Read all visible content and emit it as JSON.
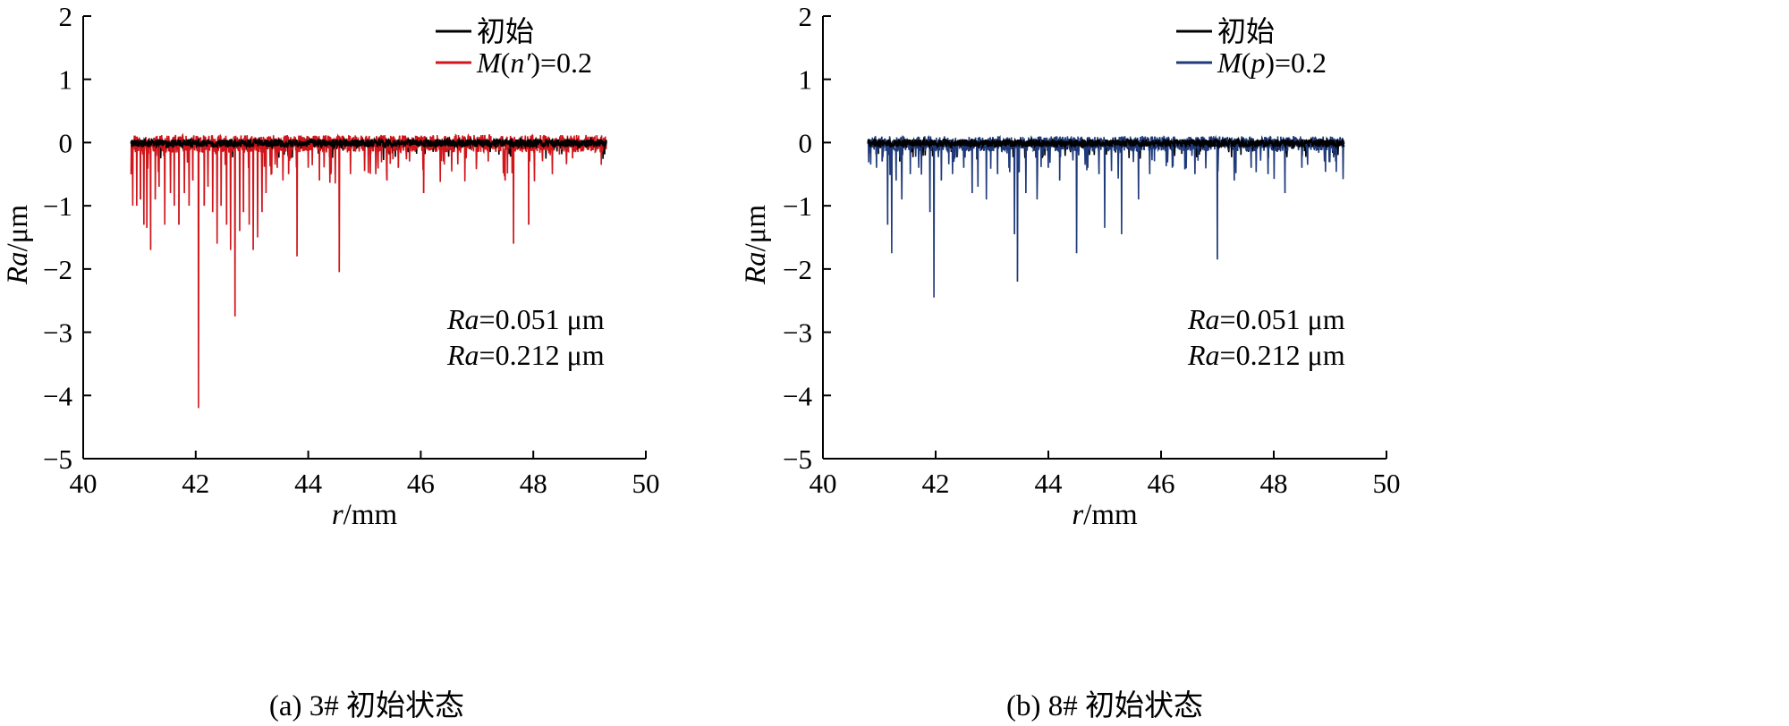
{
  "chart_data": [
    {
      "type": "line",
      "panel_caption": "(a)  3# 初始状态",
      "xlabel": {
        "var": "r",
        "unit": "mm"
      },
      "ylabel": {
        "var": "Ra",
        "unit": "μm"
      },
      "xlim": [
        40,
        50
      ],
      "ylim": [
        -5,
        2
      ],
      "xticks": [
        "40",
        "42",
        "44",
        "46",
        "48",
        "50"
      ],
      "yticks": [
        "2",
        "1",
        "0",
        "−1",
        "−2",
        "−3",
        "−4",
        "−5"
      ],
      "legend_position": "top-right",
      "series": [
        {
          "name": "初始",
          "color": "#000000",
          "x_range": [
            40.85,
            49.3
          ],
          "baseline": -0.01,
          "noise_amplitude": 0.06
        },
        {
          "name_parts": {
            "var": "M",
            "arg": "n′",
            "value": "=0.2"
          },
          "color": "#d0161b",
          "x_range": [
            40.85,
            49.3
          ],
          "baseline": -0.02,
          "noise_amplitude": 0.14,
          "spikes": [
            [
              40.88,
              -1.0
            ],
            [
              40.95,
              -1.0
            ],
            [
              41.02,
              -0.9
            ],
            [
              41.08,
              -1.3
            ],
            [
              41.13,
              -1.35
            ],
            [
              41.2,
              -1.7
            ],
            [
              41.28,
              -0.9
            ],
            [
              41.35,
              -0.7
            ],
            [
              41.45,
              -1.3
            ],
            [
              41.55,
              -0.8
            ],
            [
              41.62,
              -1.0
            ],
            [
              41.7,
              -1.3
            ],
            [
              41.8,
              -0.8
            ],
            [
              41.88,
              -1.0
            ],
            [
              41.95,
              -0.6
            ],
            [
              42.05,
              -4.2
            ],
            [
              42.15,
              -1.0
            ],
            [
              42.22,
              -0.7
            ],
            [
              42.3,
              -1.1
            ],
            [
              42.38,
              -1.6
            ],
            [
              42.45,
              -1.0
            ],
            [
              42.55,
              -1.3
            ],
            [
              42.62,
              -1.7
            ],
            [
              42.7,
              -2.75
            ],
            [
              42.78,
              -1.4
            ],
            [
              42.85,
              -1.1
            ],
            [
              42.95,
              -1.3
            ],
            [
              43.02,
              -1.7
            ],
            [
              43.1,
              -1.5
            ],
            [
              43.18,
              -1.1
            ],
            [
              43.25,
              -0.8
            ],
            [
              43.35,
              -0.5
            ],
            [
              43.45,
              -0.4
            ],
            [
              43.55,
              -0.6
            ],
            [
              43.65,
              -0.5
            ],
            [
              43.8,
              -1.8
            ],
            [
              44.0,
              -0.4
            ],
            [
              44.2,
              -0.6
            ],
            [
              44.4,
              -0.5
            ],
            [
              44.55,
              -2.05
            ],
            [
              44.75,
              -0.5
            ],
            [
              45.0,
              -0.45
            ],
            [
              45.2,
              -0.5
            ],
            [
              45.4,
              -0.6
            ],
            [
              45.6,
              -0.4
            ],
            [
              45.8,
              -0.3
            ],
            [
              46.05,
              -0.8
            ],
            [
              46.4,
              -0.3
            ],
            [
              46.8,
              -0.25
            ],
            [
              47.2,
              -0.3
            ],
            [
              47.5,
              -0.6
            ],
            [
              47.65,
              -1.6
            ],
            [
              47.92,
              -1.3
            ],
            [
              48.3,
              -0.2
            ],
            [
              48.7,
              -0.25
            ],
            [
              49.1,
              -0.15
            ]
          ]
        }
      ],
      "annotations": [
        {
          "var": "Ra",
          "text": "=0.051 μm"
        },
        {
          "var": "Ra",
          "text": "=0.212 μm"
        }
      ]
    },
    {
      "type": "line",
      "panel_caption": "(b)  8# 初始状态",
      "xlabel": {
        "var": "r",
        "unit": "mm"
      },
      "ylabel": {
        "var": "Ra",
        "unit": "μm"
      },
      "xlim": [
        40,
        50
      ],
      "ylim": [
        -5,
        2
      ],
      "xticks": [
        "40",
        "42",
        "44",
        "46",
        "48",
        "50"
      ],
      "yticks": [
        "2",
        "1",
        "0",
        "−1",
        "−2",
        "−3",
        "−4",
        "−5"
      ],
      "legend_position": "top-right",
      "series": [
        {
          "name": "初始",
          "color": "#000000",
          "x_range": [
            40.8,
            49.25
          ],
          "baseline": -0.01,
          "noise_amplitude": 0.06
        },
        {
          "name_parts": {
            "var": "M",
            "arg": "p",
            "value": "=0.2"
          },
          "color": "#1f3a7a",
          "x_range": [
            40.8,
            49.25
          ],
          "baseline": -0.02,
          "noise_amplitude": 0.12,
          "spikes": [
            [
              40.95,
              -0.4
            ],
            [
              41.05,
              -0.3
            ],
            [
              41.15,
              -1.3
            ],
            [
              41.22,
              -1.75
            ],
            [
              41.3,
              -0.6
            ],
            [
              41.4,
              -0.9
            ],
            [
              41.55,
              -0.5
            ],
            [
              41.7,
              -0.4
            ],
            [
              41.9,
              -1.1
            ],
            [
              41.97,
              -2.45
            ],
            [
              42.1,
              -0.6
            ],
            [
              42.3,
              -0.5
            ],
            [
              42.5,
              -0.4
            ],
            [
              42.65,
              -0.8
            ],
            [
              42.75,
              -0.7
            ],
            [
              42.9,
              -0.9
            ],
            [
              43.1,
              -0.5
            ],
            [
              43.3,
              -0.4
            ],
            [
              43.4,
              -1.45
            ],
            [
              43.45,
              -2.2
            ],
            [
              43.6,
              -0.8
            ],
            [
              43.8,
              -0.9
            ],
            [
              44.0,
              -0.4
            ],
            [
              44.2,
              -0.6
            ],
            [
              44.5,
              -1.75
            ],
            [
              44.7,
              -0.4
            ],
            [
              44.9,
              -0.5
            ],
            [
              45.0,
              -1.35
            ],
            [
              45.3,
              -1.45
            ],
            [
              45.6,
              -0.9
            ],
            [
              45.8,
              -0.5
            ],
            [
              46.2,
              -0.4
            ],
            [
              46.6,
              -0.5
            ],
            [
              47.0,
              -1.85
            ],
            [
              47.3,
              -0.6
            ],
            [
              47.6,
              -0.4
            ],
            [
              47.9,
              -0.5
            ],
            [
              48.2,
              -0.8
            ],
            [
              48.5,
              -0.4
            ],
            [
              48.9,
              -0.3
            ],
            [
              49.1,
              -0.3
            ]
          ]
        }
      ],
      "annotations": [
        {
          "var": "Ra",
          "text": "=0.051 μm"
        },
        {
          "var": "Ra",
          "text": "=0.212 μm"
        }
      ]
    }
  ]
}
